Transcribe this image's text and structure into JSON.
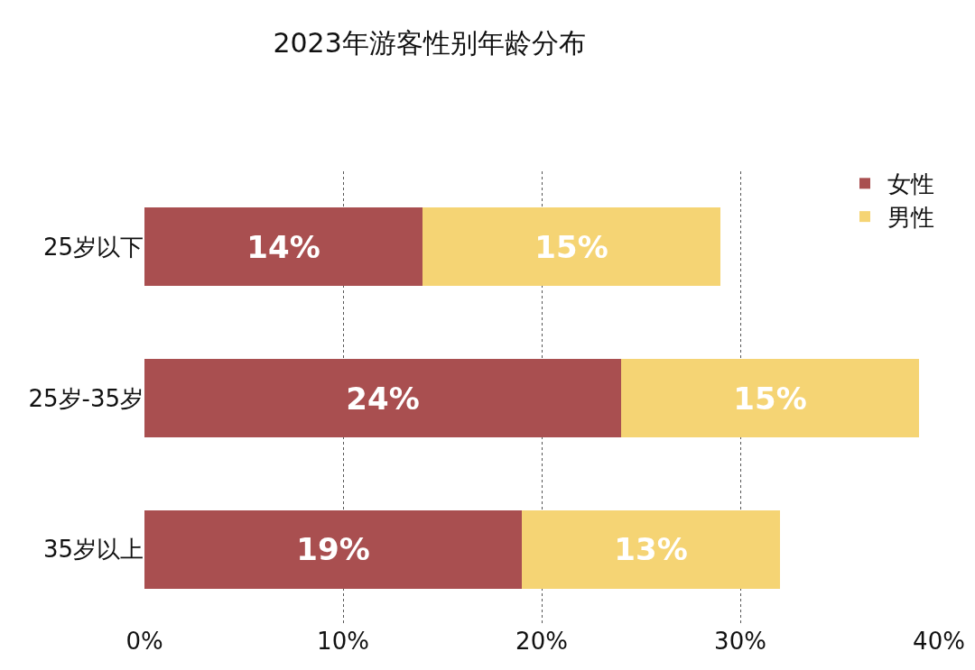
{
  "chart_data": {
    "type": "bar",
    "orientation": "horizontal",
    "stacked": true,
    "title": "2023年游客性别年龄分布",
    "categories": [
      "25岁以下",
      "25岁-35岁",
      "35岁以上"
    ],
    "series": [
      {
        "name": "女性",
        "color": "#a94f50",
        "values": [
          14,
          24,
          19
        ],
        "value_labels": [
          "14%",
          "24%",
          "19%"
        ]
      },
      {
        "name": "男性",
        "color": "#f5d474",
        "values": [
          15,
          15,
          13
        ],
        "value_labels": [
          "15%",
          "15%",
          "13%"
        ]
      }
    ],
    "xlim": [
      0,
      40
    ],
    "xticks": [
      {
        "value": 0,
        "label": "0%"
      },
      {
        "value": 10,
        "label": "10%"
      },
      {
        "value": 20,
        "label": "20%"
      },
      {
        "value": 30,
        "label": "30%"
      },
      {
        "value": 40,
        "label": "40%"
      }
    ],
    "grid": "x",
    "legend": "top right"
  }
}
